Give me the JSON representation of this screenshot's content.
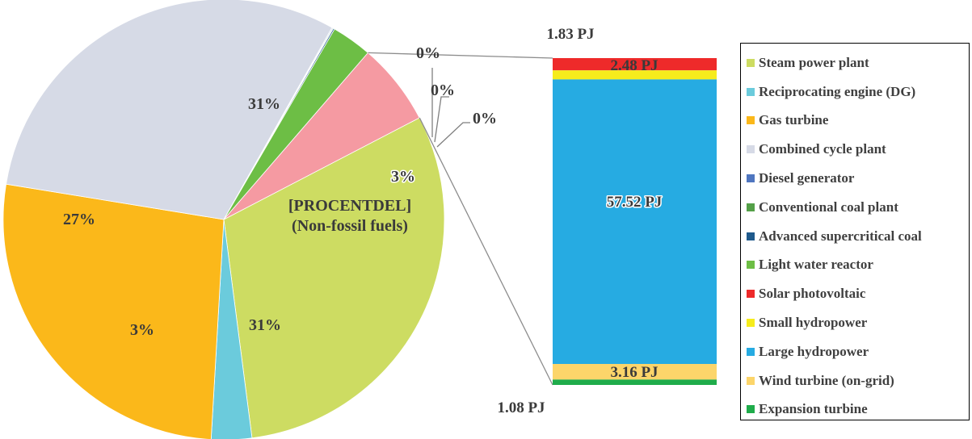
{
  "chart_data": {
    "type": "pie",
    "pie": {
      "slices": [
        {
          "name": "Steam power plant",
          "value": 31,
          "label": "31%",
          "color": "#cddc62"
        },
        {
          "name": "Reciprocating engine (DG)",
          "value": 3,
          "label": "3%",
          "color": "#6bcbdc"
        },
        {
          "name": "Gas turbine",
          "value": 27,
          "label": "27%",
          "color": "#fbb81a"
        },
        {
          "name": "Combined cycle plant",
          "value": 31,
          "label": "31%",
          "color": "#d6dae6"
        },
        {
          "name": "Diesel generator",
          "value": 0.06,
          "label": "0%",
          "color": "#4f76c0"
        },
        {
          "name": "Conventional coal plant",
          "value": 0.06,
          "label": "0%",
          "color": "#54a048"
        },
        {
          "name": "Advanced supercritical coal",
          "value": 0.1,
          "label": "0%",
          "color": "#1f5a8c"
        },
        {
          "name": "Light water reactor",
          "value": 3,
          "label": "3%",
          "color": "#6dbe45"
        },
        {
          "name": "Non-fossil fuels",
          "value": 6.1,
          "label": "[PROCENTDEL]\n(Non-fossil fuels)",
          "color": "#f59aa2"
        }
      ]
    },
    "breakdown_bar": {
      "title": "Non-fossil fuels",
      "unit": "PJ",
      "segments": [
        {
          "name": "Solar photovoltaic",
          "value": 2.48,
          "label": "2.48 PJ",
          "color": "#ee2a2a"
        },
        {
          "name": "Small hydropower",
          "value": 1.83,
          "label": "1.83 PJ",
          "color": "#f6ec1c"
        },
        {
          "name": "Large hydropower",
          "value": 57.52,
          "label": "57.52 PJ",
          "color": "#26abe2"
        },
        {
          "name": "Wind turbine (on-grid)",
          "value": 3.16,
          "label": "3.16 PJ",
          "color": "#fcd56a"
        },
        {
          "name": "Expansion turbine",
          "value": 1.08,
          "label": "1.08 PJ",
          "color": "#1fac4b"
        }
      ]
    },
    "legend": {
      "placement": "right",
      "items": [
        {
          "label": "Steam power plant",
          "color": "#cddc62"
        },
        {
          "label": "Reciprocating engine (DG)",
          "color": "#6bcbdc"
        },
        {
          "label": "Gas turbine",
          "color": "#fbb81a"
        },
        {
          "label": "Combined cycle plant",
          "color": "#d6dae6"
        },
        {
          "label": "Diesel generator",
          "color": "#4f76c0"
        },
        {
          "label": "Conventional coal plant",
          "color": "#54a048"
        },
        {
          "label": "Advanced supercritical coal",
          "color": "#1f5a8c"
        },
        {
          "label": "Light water reactor",
          "color": "#6dbe45"
        },
        {
          "label": "Solar photovoltaic",
          "color": "#ee2a2a"
        },
        {
          "label": "Small hydropower",
          "color": "#f6ec1c"
        },
        {
          "label": "Large hydropower",
          "color": "#26abe2"
        },
        {
          "label": "Wind turbine (on-grid)",
          "color": "#fcd56a"
        },
        {
          "label": "Expansion turbine",
          "color": "#1fac4b"
        }
      ]
    }
  }
}
